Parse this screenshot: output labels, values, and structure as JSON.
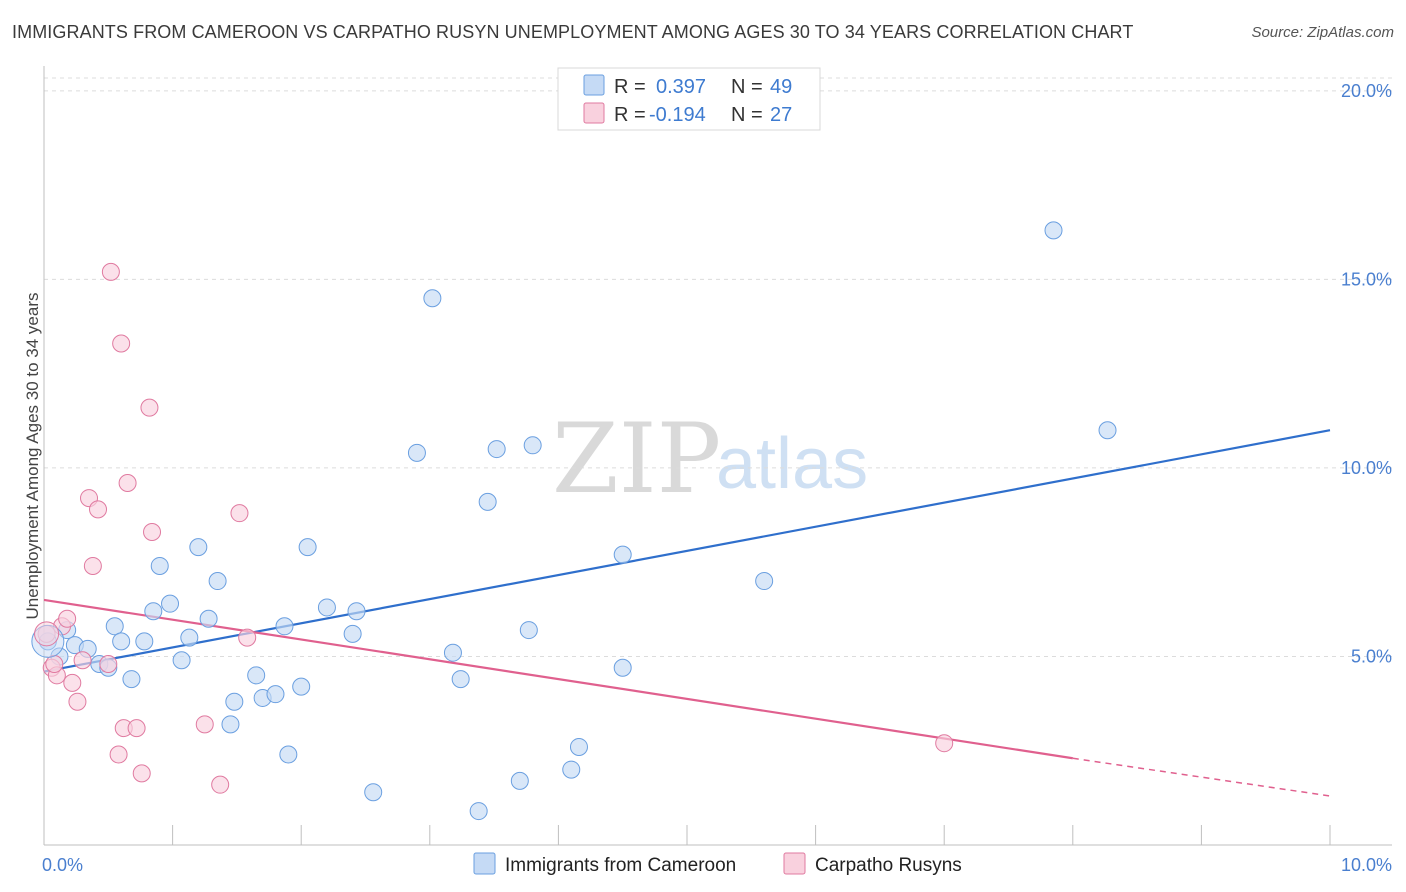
{
  "header": {
    "title": "IMMIGRANTS FROM CAMEROON VS CARPATHO RUSYN UNEMPLOYMENT AMONG AGES 30 TO 34 YEARS CORRELATION CHART",
    "source": "Source: ZipAtlas.com"
  },
  "watermark": {
    "part1": "ZIP",
    "part2": "atlas"
  },
  "legend_stats": [
    {
      "r_label": "R =",
      "r_value": "0.397",
      "n_label": "N =",
      "n_value": "49",
      "color": "#aac8f0"
    },
    {
      "r_label": "R =",
      "r_value": "-0.194",
      "n_label": "N =",
      "n_value": "27",
      "color": "#f6b6c9"
    }
  ],
  "bottom_legend": [
    {
      "label": "Immigrants from Cameroon",
      "color": "#aac8f0"
    },
    {
      "label": "Carpatho Rusyns",
      "color": "#f6b6c9"
    }
  ],
  "chart_data": {
    "type": "scatter",
    "xlabel": "",
    "ylabel": "Unemployment Among Ages 30 to 34 years",
    "xlim": [
      0,
      10
    ],
    "ylim": [
      0,
      20.5
    ],
    "x_tick_labels": [
      {
        "value": 0,
        "label": "0.0%"
      },
      {
        "value": 10,
        "label": "10.0%"
      }
    ],
    "y_tick_labels": [
      {
        "value": 5,
        "label": "5.0%"
      },
      {
        "value": 10,
        "label": "10.0%"
      },
      {
        "value": 15,
        "label": "15.0%"
      },
      {
        "value": 20,
        "label": "20.0%"
      }
    ],
    "grid": "horizontal dashed",
    "series": [
      {
        "name": "Immigrants from Cameroon",
        "color": "#6a9fe0",
        "fill": "#c5daf5",
        "points": [
          [
            0.03,
            5.4
          ],
          [
            0.12,
            5.0
          ],
          [
            0.18,
            5.7
          ],
          [
            0.24,
            5.3
          ],
          [
            0.34,
            5.2
          ],
          [
            0.43,
            4.8
          ],
          [
            0.5,
            4.7
          ],
          [
            0.55,
            5.8
          ],
          [
            0.6,
            5.4
          ],
          [
            0.68,
            4.4
          ],
          [
            0.78,
            5.4
          ],
          [
            0.85,
            6.2
          ],
          [
            0.9,
            7.4
          ],
          [
            0.98,
            6.4
          ],
          [
            1.07,
            4.9
          ],
          [
            1.13,
            5.5
          ],
          [
            1.2,
            7.9
          ],
          [
            1.28,
            6.0
          ],
          [
            1.35,
            7.0
          ],
          [
            1.45,
            3.2
          ],
          [
            1.48,
            3.8
          ],
          [
            1.65,
            4.5
          ],
          [
            1.7,
            3.9
          ],
          [
            1.8,
            4.0
          ],
          [
            1.87,
            5.8
          ],
          [
            1.9,
            2.4
          ],
          [
            2.0,
            4.2
          ],
          [
            2.05,
            7.9
          ],
          [
            2.2,
            6.3
          ],
          [
            2.4,
            5.6
          ],
          [
            2.43,
            6.2
          ],
          [
            2.56,
            1.4
          ],
          [
            2.9,
            10.4
          ],
          [
            3.02,
            14.5
          ],
          [
            3.18,
            5.1
          ],
          [
            3.24,
            4.4
          ],
          [
            3.45,
            9.1
          ],
          [
            3.52,
            10.5
          ],
          [
            3.7,
            1.7
          ],
          [
            3.77,
            5.7
          ],
          [
            3.8,
            10.6
          ],
          [
            4.1,
            2.0
          ],
          [
            4.16,
            2.6
          ],
          [
            4.5,
            7.7
          ],
          [
            4.5,
            4.7
          ],
          [
            5.6,
            7.0
          ],
          [
            7.85,
            16.3
          ],
          [
            8.27,
            11.0
          ],
          [
            3.38,
            0.9
          ]
        ],
        "trend": {
          "x0": 0.0,
          "y0": 4.6,
          "x1": 10.0,
          "y1": 11.0
        }
      },
      {
        "name": "Carpatho Rusyns",
        "color": "#e07aa0",
        "fill": "#f9d1de",
        "points": [
          [
            0.02,
            5.6
          ],
          [
            0.06,
            4.7
          ],
          [
            0.1,
            4.5
          ],
          [
            0.14,
            5.8
          ],
          [
            0.18,
            6.0
          ],
          [
            0.22,
            4.3
          ],
          [
            0.26,
            3.8
          ],
          [
            0.3,
            4.9
          ],
          [
            0.35,
            9.2
          ],
          [
            0.38,
            7.4
          ],
          [
            0.42,
            8.9
          ],
          [
            0.5,
            4.8
          ],
          [
            0.52,
            15.2
          ],
          [
            0.58,
            2.4
          ],
          [
            0.6,
            13.3
          ],
          [
            0.62,
            3.1
          ],
          [
            0.65,
            9.6
          ],
          [
            0.72,
            3.1
          ],
          [
            0.76,
            1.9
          ],
          [
            0.82,
            11.6
          ],
          [
            0.84,
            8.3
          ],
          [
            1.25,
            3.2
          ],
          [
            1.37,
            1.6
          ],
          [
            1.52,
            8.8
          ],
          [
            1.58,
            5.5
          ],
          [
            0.08,
            4.8
          ],
          [
            7.0,
            2.7
          ]
        ],
        "trend": {
          "x0": 0.0,
          "y0": 6.5,
          "x1": 8.0,
          "y1": 2.3
        },
        "trend_dashed_extension": {
          "x0": 8.0,
          "y0": 2.3,
          "x1": 10.0,
          "y1": 1.3
        }
      }
    ]
  }
}
